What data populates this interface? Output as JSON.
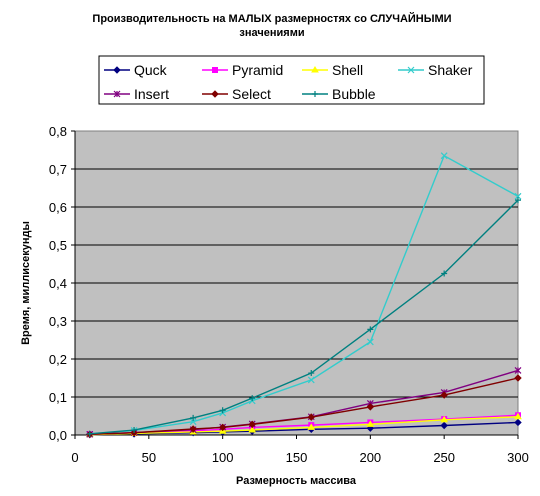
{
  "chart_data": {
    "type": "line",
    "title_line1": "Производительность на МАЛЫХ размерностях со СЛУЧАЙНЫМИ",
    "title_line2": "значениями",
    "xlabel": "Размерность массива",
    "ylabel": "Время, миллисекунды",
    "x": [
      10,
      40,
      80,
      100,
      120,
      160,
      200,
      250,
      300
    ],
    "xlim": [
      0,
      300
    ],
    "ylim": [
      0,
      0.8
    ],
    "xticks": [
      "0",
      "50",
      "100",
      "150",
      "200",
      "250",
      "300"
    ],
    "yticks": [
      "0,0",
      "0,1",
      "0,2",
      "0,3",
      "0,4",
      "0,5",
      "0,6",
      "0,7",
      "0,8"
    ],
    "grid": true,
    "plot_background": "#c0c0c0",
    "legend_placement": "top",
    "series": [
      {
        "name": "Quck",
        "color": "#000080",
        "marker": "diamond",
        "values": [
          0.001,
          0.003,
          0.006,
          0.008,
          0.01,
          0.015,
          0.018,
          0.025,
          0.033
        ]
      },
      {
        "name": "Pyramid",
        "color": "#ff00ff",
        "marker": "square",
        "values": [
          0.002,
          0.006,
          0.011,
          0.015,
          0.02,
          0.026,
          0.033,
          0.042,
          0.052
        ]
      },
      {
        "name": "Shell",
        "color": "#ffff00",
        "marker": "triangle",
        "values": [
          0.001,
          0.004,
          0.008,
          0.01,
          0.013,
          0.02,
          0.028,
          0.04,
          0.048
        ]
      },
      {
        "name": "Shaker",
        "color": "#33cccc",
        "marker": "x",
        "values": [
          0.002,
          0.012,
          0.035,
          0.058,
          0.09,
          0.145,
          0.245,
          0.735,
          0.628
        ]
      },
      {
        "name": "Insert",
        "color": "#800080",
        "marker": "asterisk",
        "values": [
          0.002,
          0.006,
          0.014,
          0.021,
          0.029,
          0.048,
          0.083,
          0.112,
          0.17
        ]
      },
      {
        "name": "Select",
        "color": "#800000",
        "marker": "diamond",
        "values": [
          0.002,
          0.006,
          0.016,
          0.02,
          0.028,
          0.047,
          0.074,
          0.105,
          0.15
        ]
      },
      {
        "name": "Bubble",
        "color": "#008080",
        "marker": "plus",
        "values": [
          0.003,
          0.013,
          0.045,
          0.065,
          0.097,
          0.163,
          0.278,
          0.425,
          0.618
        ]
      }
    ]
  }
}
